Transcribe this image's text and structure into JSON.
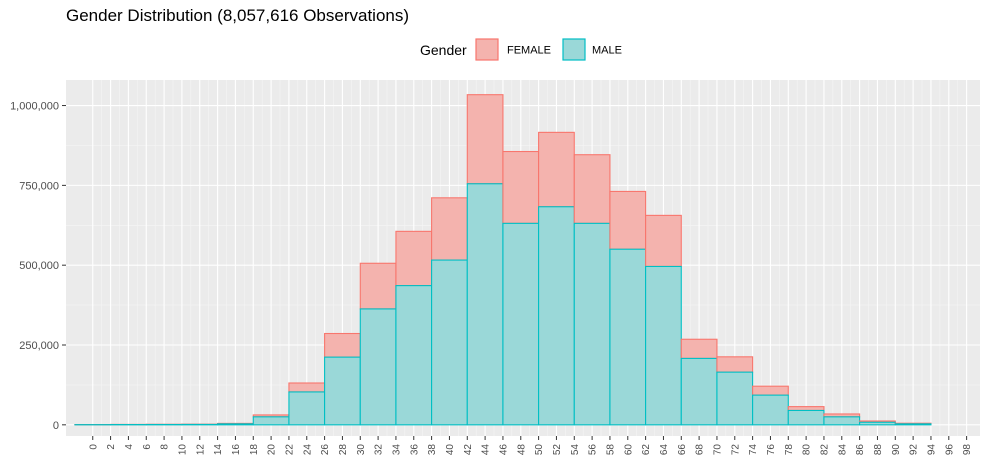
{
  "chart_data": {
    "type": "bar",
    "stacked": true,
    "title": "Gender Distribution (8,057,616 Observations)",
    "xlabel": "",
    "ylabel": "",
    "legend": {
      "title": "Gender",
      "placement": "top",
      "entries": [
        "FEMALE",
        "MALE"
      ]
    },
    "colors": {
      "FEMALE_fill": "#f4b3ae",
      "FEMALE_line": "#f8766d",
      "MALE_fill": "#9ad8d8",
      "MALE_line": "#00bfc4",
      "panel": "#ebebeb",
      "grid": "#ffffff"
    },
    "grid": true,
    "ylim": [
      -35000,
      1080000
    ],
    "xlim": [
      -3,
      99.5
    ],
    "yticks": [
      0,
      250000,
      500000,
      750000,
      1000000
    ],
    "ytick_labels": [
      "0",
      "250,000",
      "500,000",
      "750,000",
      "1,000,000"
    ],
    "xticks": [
      0,
      2,
      4,
      6,
      8,
      10,
      12,
      14,
      16,
      18,
      20,
      22,
      24,
      26,
      28,
      30,
      32,
      34,
      36,
      38,
      40,
      42,
      44,
      46,
      48,
      50,
      52,
      54,
      56,
      58,
      60,
      62,
      64,
      66,
      68,
      70,
      72,
      74,
      76,
      78,
      80,
      82,
      84,
      86,
      88,
      90,
      92,
      94,
      96,
      98
    ],
    "bin_width": 4,
    "bins": [
      {
        "start": -2,
        "end": 2
      },
      {
        "start": 2,
        "end": 6
      },
      {
        "start": 6,
        "end": 10
      },
      {
        "start": 10,
        "end": 14
      },
      {
        "start": 14,
        "end": 18
      },
      {
        "start": 18,
        "end": 22
      },
      {
        "start": 22,
        "end": 26
      },
      {
        "start": 26,
        "end": 30
      },
      {
        "start": 30,
        "end": 34
      },
      {
        "start": 34,
        "end": 38
      },
      {
        "start": 38,
        "end": 42
      },
      {
        "start": 42,
        "end": 46
      },
      {
        "start": 46,
        "end": 50
      },
      {
        "start": 50,
        "end": 54
      },
      {
        "start": 54,
        "end": 58
      },
      {
        "start": 58,
        "end": 62
      },
      {
        "start": 62,
        "end": 66
      },
      {
        "start": 66,
        "end": 70
      },
      {
        "start": 70,
        "end": 74
      },
      {
        "start": 74,
        "end": 78
      },
      {
        "start": 78,
        "end": 82
      },
      {
        "start": 82,
        "end": 86
      },
      {
        "start": 86,
        "end": 90
      },
      {
        "start": 90,
        "end": 94
      }
    ],
    "series": [
      {
        "name": "MALE",
        "values": [
          500,
          800,
          1000,
          1200,
          3000,
          25000,
          103000,
          212000,
          363000,
          436000,
          516000,
          755000,
          631000,
          683000,
          631000,
          550000,
          496000,
          208000,
          165000,
          93000,
          45000,
          25000,
          8000,
          3000
        ]
      },
      {
        "name": "FEMALE",
        "values": [
          300,
          500,
          700,
          800,
          1500,
          6000,
          28000,
          74000,
          143000,
          170000,
          195000,
          279000,
          225000,
          233000,
          215000,
          181000,
          160000,
          60000,
          48000,
          28000,
          12000,
          9000,
          4000,
          2000
        ]
      }
    ]
  }
}
